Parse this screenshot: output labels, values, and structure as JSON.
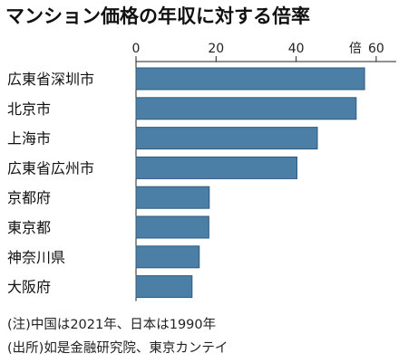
{
  "chart_data": {
    "type": "bar",
    "orientation": "horizontal",
    "title": "マンション価格の年収に対する倍率",
    "unit_label": "倍",
    "xlim": [
      0,
      65
    ],
    "xticks": [
      0,
      20,
      40,
      60
    ],
    "grid": false,
    "categories": [
      "広東省深圳市",
      "北京市",
      "上海市",
      "広東省広州市",
      "京都府",
      "東京都",
      "神奈川県",
      "大阪府"
    ],
    "values": [
      57.1,
      55.0,
      45.3,
      40.2,
      18.3,
      18.2,
      15.8,
      14.0
    ],
    "bar_color": "#4c7fa6"
  },
  "notes": [
    "(注)中国は2021年、日本は1990年",
    "(出所)如是金融研究院、東京カンテイ"
  ]
}
